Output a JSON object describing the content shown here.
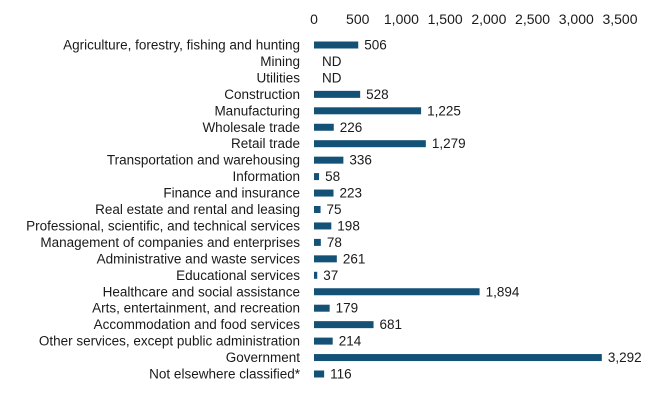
{
  "chart_data": {
    "type": "bar",
    "orientation": "horizontal",
    "title": "",
    "xlabel": "",
    "ylabel": "",
    "xlim": [
      0,
      3500
    ],
    "x_ticks": [
      0,
      500,
      1000,
      1500,
      2000,
      2500,
      3000,
      3500
    ],
    "x_tick_labels": [
      "0",
      "500",
      "1,000",
      "1,500",
      "2,000",
      "2,500",
      "3,000",
      "3,500"
    ],
    "x_axis_position": "top",
    "grid": false,
    "legend": "none",
    "bar_color": "#135176",
    "categories": [
      "Agriculture, forestry, fishing and hunting",
      "Mining",
      "Utilities",
      "Construction",
      "Manufacturing",
      "Wholesale trade",
      "Retail trade",
      "Transportation and warehousing",
      "Information",
      "Finance and insurance",
      "Real estate and rental and leasing",
      "Professional, scientific, and technical services",
      "Management of companies and enterprises",
      "Administrative and waste services",
      "Educational services",
      "Healthcare and social assistance",
      "Arts, entertainment, and recreation",
      "Accommodation and food services",
      "Other services, except public administration",
      "Government",
      "Not elsewhere classified*"
    ],
    "values": [
      506,
      null,
      null,
      528,
      1225,
      226,
      1279,
      336,
      58,
      223,
      75,
      198,
      78,
      261,
      37,
      1894,
      179,
      681,
      214,
      3292,
      116
    ],
    "value_labels": [
      "506",
      "ND",
      "ND",
      "528",
      "1,225",
      "226",
      "1,279",
      "336",
      "58",
      "223",
      "75",
      "198",
      "78",
      "261",
      "37",
      "1,894",
      "179",
      "681",
      "214",
      "3,292",
      "116"
    ]
  }
}
